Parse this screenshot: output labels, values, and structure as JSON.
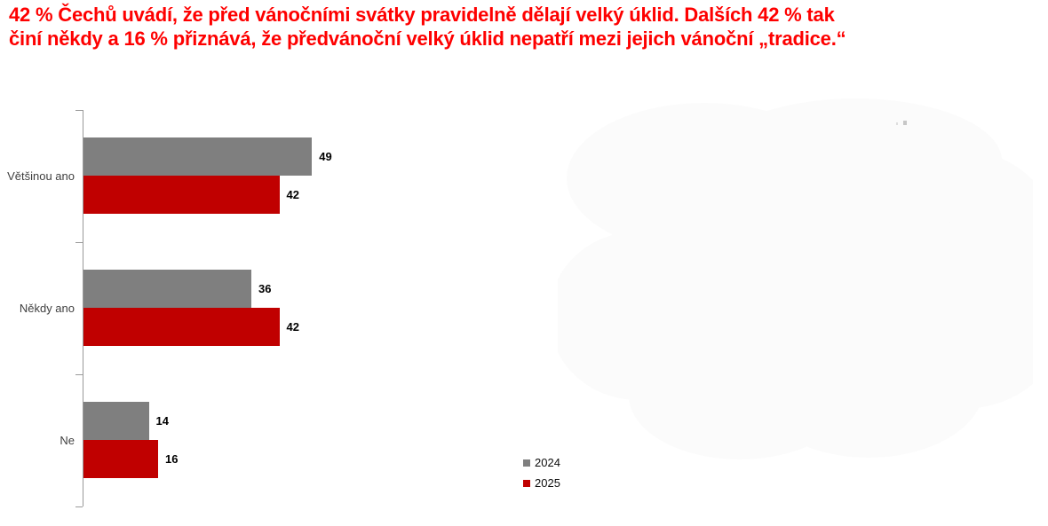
{
  "headline": {
    "lines": [
      "42 % Čechů uvádí, že před vánočními svátky pravidelně dělají velký úklid. Dalších 42 % tak",
      "činí někdy a 16 % přiznává, že předvánoční velký úklid nepatří mezi jejich vánoční „tradice.“"
    ],
    "color": "#FE0000"
  },
  "chart_data": {
    "type": "bar",
    "orientation": "horizontal",
    "title": "",
    "categories": [
      "Většinou ano",
      "Někdy ano",
      "Ne"
    ],
    "series": [
      {
        "name": "2024",
        "color": "#7F7F7F",
        "values": [
          49,
          36,
          14
        ]
      },
      {
        "name": "2025",
        "color": "#C00000",
        "values": [
          42,
          42,
          16
        ]
      }
    ],
    "value_labels": true,
    "grid": false,
    "legend_position": "bottom-center",
    "axis_color": "#9A9A9A"
  }
}
